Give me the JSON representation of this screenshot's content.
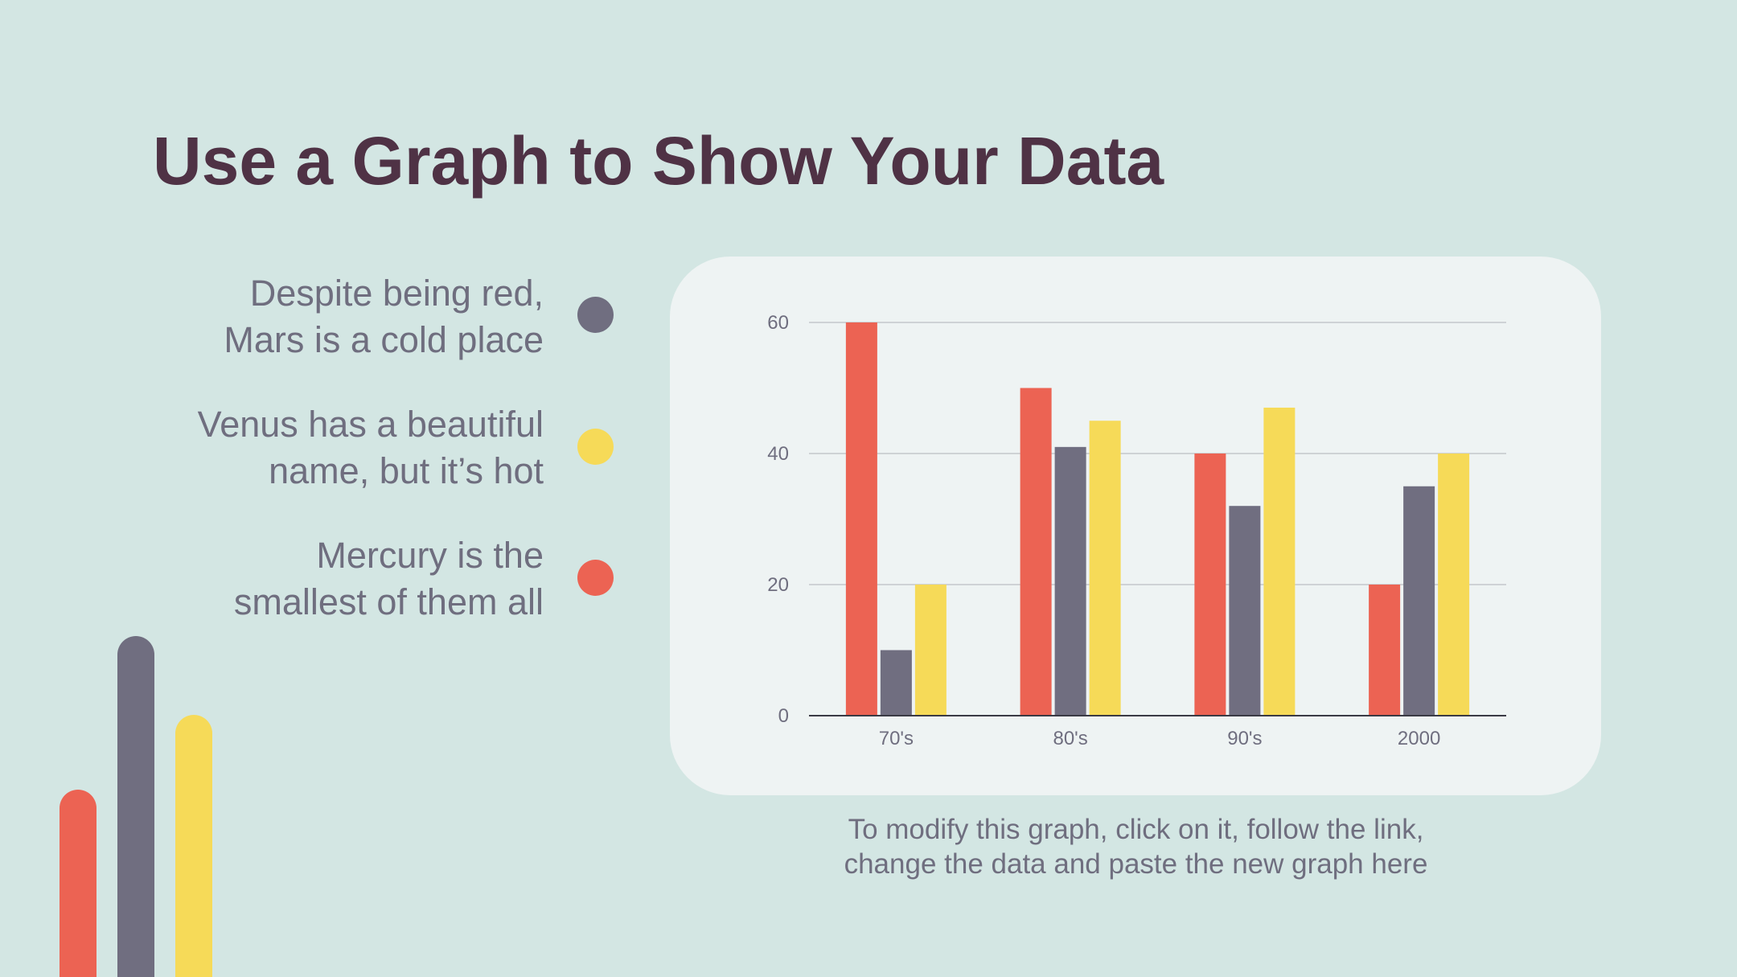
{
  "slide": {
    "title": "Use a Graph to Show Your Data",
    "note_line1": "To modify this graph, click on it, follow the link,",
    "note_line2": "change the data and paste the new graph here"
  },
  "legend": [
    {
      "line1": "Despite being red,",
      "line2": "Mars is a cold place",
      "color": "#706e80"
    },
    {
      "line1": "Venus has a beautiful",
      "line2": "name, but it’s hot",
      "color": "#f6da58"
    },
    {
      "line1": "Mercury is the",
      "line2": "smallest of them all",
      "color": "#ec6353"
    }
  ],
  "decoration": {
    "bars": [
      {
        "color": "#ec6353",
        "level": 0.55
      },
      {
        "color": "#706e80",
        "level": 1.0
      },
      {
        "color": "#f6da58",
        "level": 0.77
      }
    ]
  },
  "chart_data": {
    "type": "bar",
    "categories": [
      "70's",
      "80's",
      "90's",
      "2000"
    ],
    "series": [
      {
        "values": [
          60,
          50,
          40,
          20
        ],
        "color": "#ec6353"
      },
      {
        "values": [
          10,
          41,
          32,
          35
        ],
        "color": "#706e80"
      },
      {
        "values": [
          20,
          45,
          47,
          40
        ],
        "color": "#f6da58"
      }
    ],
    "yticks": [
      "0",
      "20",
      "40",
      "60"
    ],
    "ylim": [
      0,
      60
    ],
    "grid": true
  }
}
